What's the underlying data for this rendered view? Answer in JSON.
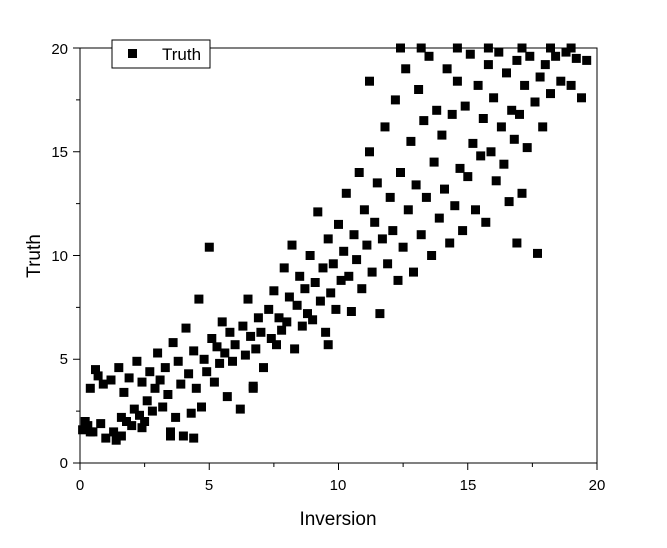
{
  "chart_data": {
    "type": "scatter",
    "title": "",
    "xlabel": "Inversion",
    "ylabel": "Truth",
    "xlim": [
      0,
      20
    ],
    "ylim": [
      0,
      20
    ],
    "x_ticks": [
      "0",
      "5",
      "10",
      "15",
      "20"
    ],
    "y_ticks": [
      "0",
      "5",
      "10",
      "15",
      "20"
    ],
    "grid": false,
    "legend": {
      "position": "top-left",
      "entries": [
        "Truth"
      ]
    },
    "marker": "square",
    "color": "#000000",
    "series": [
      {
        "name": "Truth",
        "points": [
          [
            0.1,
            1.6
          ],
          [
            0.2,
            2.0
          ],
          [
            0.3,
            1.8
          ],
          [
            0.4,
            3.6
          ],
          [
            0.5,
            1.5
          ],
          [
            0.6,
            4.5
          ],
          [
            0.7,
            4.2
          ],
          [
            0.8,
            1.9
          ],
          [
            0.9,
            3.8
          ],
          [
            1.0,
            1.2
          ],
          [
            1.2,
            4.0
          ],
          [
            1.3,
            1.5
          ],
          [
            1.4,
            1.1
          ],
          [
            1.5,
            4.6
          ],
          [
            1.6,
            2.2
          ],
          [
            1.7,
            3.4
          ],
          [
            1.8,
            2.0
          ],
          [
            1.9,
            4.1
          ],
          [
            2.0,
            1.8
          ],
          [
            2.1,
            2.6
          ],
          [
            2.2,
            4.9
          ],
          [
            2.3,
            2.3
          ],
          [
            2.4,
            3.9
          ],
          [
            2.5,
            2.0
          ],
          [
            2.6,
            3.0
          ],
          [
            2.7,
            4.4
          ],
          [
            2.8,
            2.5
          ],
          [
            2.9,
            3.6
          ],
          [
            3.0,
            5.3
          ],
          [
            3.1,
            4.0
          ],
          [
            3.2,
            2.7
          ],
          [
            3.3,
            4.6
          ],
          [
            3.4,
            3.3
          ],
          [
            3.5,
            1.5
          ],
          [
            3.6,
            5.8
          ],
          [
            3.7,
            2.2
          ],
          [
            3.8,
            4.9
          ],
          [
            3.9,
            3.8
          ],
          [
            4.0,
            1.3
          ],
          [
            4.1,
            6.5
          ],
          [
            4.2,
            4.3
          ],
          [
            4.3,
            2.4
          ],
          [
            4.4,
            5.4
          ],
          [
            4.5,
            3.6
          ],
          [
            4.6,
            7.9
          ],
          [
            4.7,
            2.7
          ],
          [
            4.8,
            5.0
          ],
          [
            4.9,
            4.4
          ],
          [
            5.0,
            10.4
          ],
          [
            5.1,
            6.0
          ],
          [
            5.2,
            3.9
          ],
          [
            5.3,
            5.6
          ],
          [
            5.4,
            4.8
          ],
          [
            5.5,
            6.8
          ],
          [
            5.6,
            5.3
          ],
          [
            5.7,
            3.2
          ],
          [
            5.8,
            6.3
          ],
          [
            5.9,
            4.9
          ],
          [
            6.0,
            5.7
          ],
          [
            6.2,
            2.6
          ],
          [
            6.3,
            6.6
          ],
          [
            6.4,
            5.2
          ],
          [
            6.5,
            7.9
          ],
          [
            6.6,
            6.1
          ],
          [
            6.7,
            3.7
          ],
          [
            6.8,
            5.5
          ],
          [
            6.9,
            7.0
          ],
          [
            7.0,
            6.3
          ],
          [
            7.1,
            4.6
          ],
          [
            7.3,
            7.4
          ],
          [
            7.4,
            6.0
          ],
          [
            7.5,
            8.3
          ],
          [
            7.6,
            5.7
          ],
          [
            7.7,
            7.0
          ],
          [
            7.8,
            6.4
          ],
          [
            7.9,
            9.4
          ],
          [
            8.0,
            6.8
          ],
          [
            8.1,
            8.0
          ],
          [
            8.2,
            10.5
          ],
          [
            8.3,
            5.5
          ],
          [
            8.4,
            7.6
          ],
          [
            8.5,
            9.0
          ],
          [
            8.6,
            6.6
          ],
          [
            8.7,
            8.4
          ],
          [
            8.8,
            7.2
          ],
          [
            8.9,
            10.0
          ],
          [
            9.0,
            6.9
          ],
          [
            9.1,
            8.7
          ],
          [
            9.2,
            12.1
          ],
          [
            9.3,
            7.8
          ],
          [
            9.4,
            9.4
          ],
          [
            9.5,
            6.3
          ],
          [
            9.6,
            10.8
          ],
          [
            9.7,
            8.2
          ],
          [
            9.8,
            9.6
          ],
          [
            9.9,
            7.4
          ],
          [
            10.0,
            11.5
          ],
          [
            10.1,
            8.8
          ],
          [
            10.2,
            10.2
          ],
          [
            10.3,
            13.0
          ],
          [
            10.4,
            9.0
          ],
          [
            10.5,
            7.3
          ],
          [
            10.6,
            11.0
          ],
          [
            10.7,
            9.8
          ],
          [
            10.8,
            14.0
          ],
          [
            10.9,
            8.4
          ],
          [
            11.0,
            12.2
          ],
          [
            11.1,
            10.5
          ],
          [
            11.2,
            15.0
          ],
          [
            11.3,
            9.2
          ],
          [
            11.4,
            11.6
          ],
          [
            11.5,
            13.5
          ],
          [
            11.6,
            7.2
          ],
          [
            11.7,
            10.8
          ],
          [
            11.8,
            16.2
          ],
          [
            11.9,
            9.6
          ],
          [
            12.0,
            12.8
          ],
          [
            12.1,
            11.2
          ],
          [
            12.2,
            17.5
          ],
          [
            12.3,
            8.8
          ],
          [
            12.4,
            14.0
          ],
          [
            12.5,
            10.4
          ],
          [
            12.6,
            19.0
          ],
          [
            12.7,
            12.2
          ],
          [
            12.8,
            15.5
          ],
          [
            12.9,
            9.2
          ],
          [
            13.0,
            13.4
          ],
          [
            13.1,
            18.0
          ],
          [
            13.2,
            11.0
          ],
          [
            13.3,
            16.5
          ],
          [
            13.4,
            12.8
          ],
          [
            13.5,
            19.6
          ],
          [
            13.6,
            10.0
          ],
          [
            13.7,
            14.5
          ],
          [
            13.8,
            17.0
          ],
          [
            13.9,
            11.8
          ],
          [
            14.0,
            15.8
          ],
          [
            14.1,
            13.2
          ],
          [
            14.2,
            19.0
          ],
          [
            14.3,
            10.6
          ],
          [
            14.4,
            16.8
          ],
          [
            14.5,
            12.4
          ],
          [
            14.6,
            18.4
          ],
          [
            14.7,
            14.2
          ],
          [
            14.8,
            11.2
          ],
          [
            14.9,
            17.2
          ],
          [
            15.0,
            13.8
          ],
          [
            15.1,
            19.7
          ],
          [
            15.2,
            15.4
          ],
          [
            15.3,
            12.2
          ],
          [
            15.4,
            18.2
          ],
          [
            15.5,
            14.8
          ],
          [
            15.6,
            16.6
          ],
          [
            15.7,
            11.6
          ],
          [
            15.8,
            19.2
          ],
          [
            15.9,
            15.0
          ],
          [
            16.0,
            17.6
          ],
          [
            16.1,
            13.6
          ],
          [
            16.2,
            19.8
          ],
          [
            16.3,
            16.2
          ],
          [
            16.4,
            14.4
          ],
          [
            16.5,
            18.8
          ],
          [
            16.6,
            12.6
          ],
          [
            16.7,
            17.0
          ],
          [
            16.8,
            15.6
          ],
          [
            16.9,
            19.4
          ],
          [
            17.0,
            16.8
          ],
          [
            17.1,
            13.0
          ],
          [
            17.2,
            18.2
          ],
          [
            17.3,
            15.2
          ],
          [
            17.4,
            19.6
          ],
          [
            17.6,
            17.4
          ],
          [
            17.7,
            10.1
          ],
          [
            17.8,
            18.6
          ],
          [
            17.9,
            16.2
          ],
          [
            18.0,
            19.2
          ],
          [
            18.2,
            17.8
          ],
          [
            18.4,
            19.6
          ],
          [
            18.6,
            18.4
          ],
          [
            18.8,
            19.8
          ],
          [
            19.0,
            18.2
          ],
          [
            19.2,
            19.5
          ],
          [
            19.4,
            17.6
          ],
          [
            19.6,
            19.4
          ],
          [
            11.2,
            18.4
          ],
          [
            16.9,
            10.6
          ],
          [
            12.4,
            20.0
          ],
          [
            13.2,
            20.0
          ],
          [
            14.6,
            20.0
          ],
          [
            15.8,
            20.0
          ],
          [
            17.1,
            20.0
          ],
          [
            18.2,
            20.0
          ],
          [
            19.0,
            20.0
          ],
          [
            3.5,
            1.3
          ],
          [
            4.4,
            1.2
          ],
          [
            6.7,
            3.6
          ],
          [
            2.4,
            1.7
          ],
          [
            0.4,
            1.5
          ],
          [
            1.6,
            1.3
          ],
          [
            9.6,
            5.7
          ]
        ]
      }
    ]
  },
  "legend": {
    "label": "Truth"
  },
  "axes": {
    "xlabel": "Inversion",
    "ylabel": "Truth",
    "x_ticks": [
      "0",
      "5",
      "10",
      "15",
      "20"
    ],
    "y_ticks": [
      "0",
      "5",
      "10",
      "15",
      "20"
    ]
  }
}
